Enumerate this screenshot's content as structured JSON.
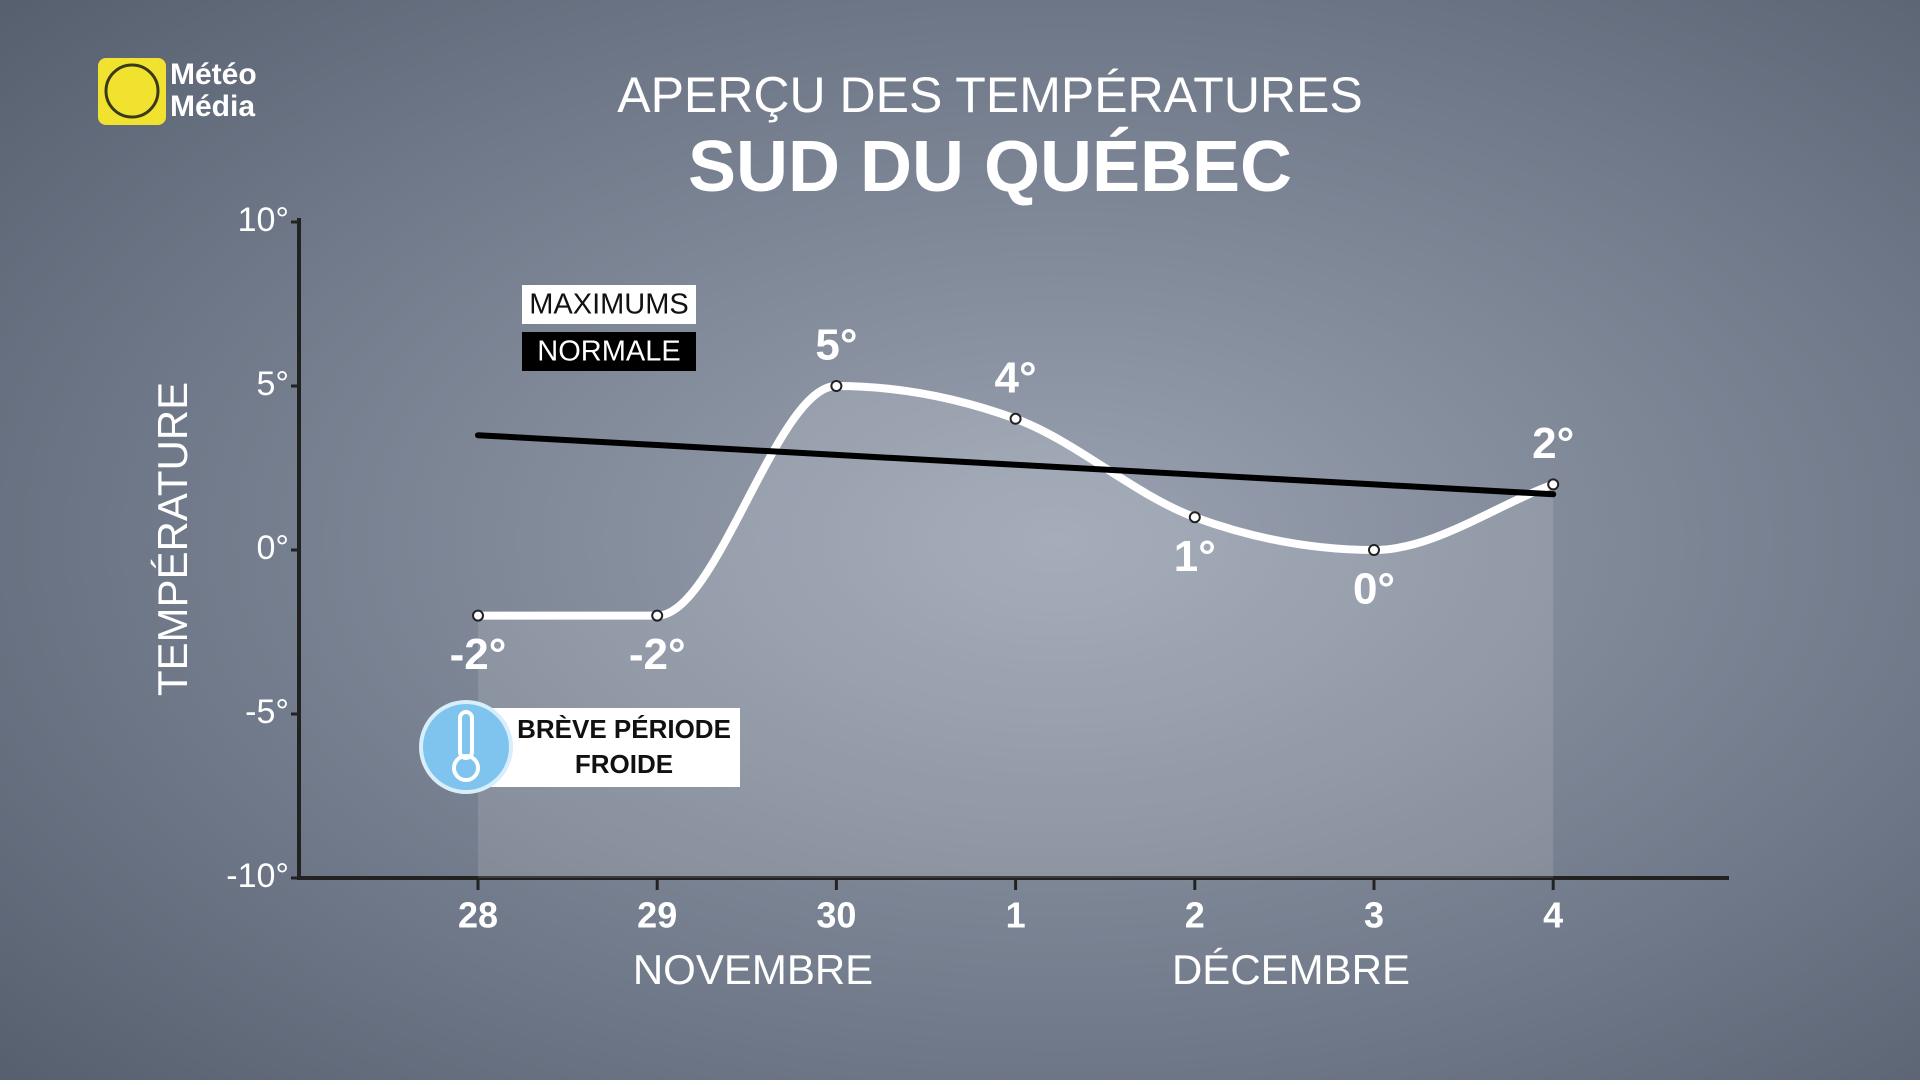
{
  "logo": {
    "lines": [
      "Météo",
      "Média"
    ]
  },
  "chart_data": {
    "type": "line",
    "title": "APERÇU DES TEMPÉRATURES",
    "subtitle": "SUD DU QUÉBEC",
    "y_label": "TEMPÉRATURE",
    "categories": [
      "28",
      "29",
      "30",
      "1",
      "2",
      "3",
      "4"
    ],
    "month_labels": [
      "NOVEMBRE",
      "DÉCEMBRE"
    ],
    "series": [
      {
        "name": "MAXIMUMS",
        "color": "#ffffff",
        "smooth": true,
        "values": [
          -2,
          -2,
          5,
          4,
          1,
          0,
          2
        ],
        "value_labels": [
          "-2°",
          "-2°",
          "5°",
          "4°",
          "1°",
          "0°",
          "2°"
        ]
      },
      {
        "name": "NORMALE",
        "color": "#000000",
        "smooth": false,
        "values": [
          3.5,
          3.2,
          2.9,
          2.6,
          2.3,
          2.0,
          1.7
        ]
      }
    ],
    "ylim": [
      -10,
      10
    ],
    "yticks": [
      {
        "value": -10,
        "label": "-10°"
      },
      {
        "value": -5,
        "label": "-5°"
      },
      {
        "value": 0,
        "label": "0°"
      },
      {
        "value": 5,
        "label": "5°"
      },
      {
        "value": 10,
        "label": "10°"
      }
    ],
    "annotation": {
      "lines": [
        "BRÈVE PÉRIODE",
        "FROIDE"
      ]
    }
  }
}
